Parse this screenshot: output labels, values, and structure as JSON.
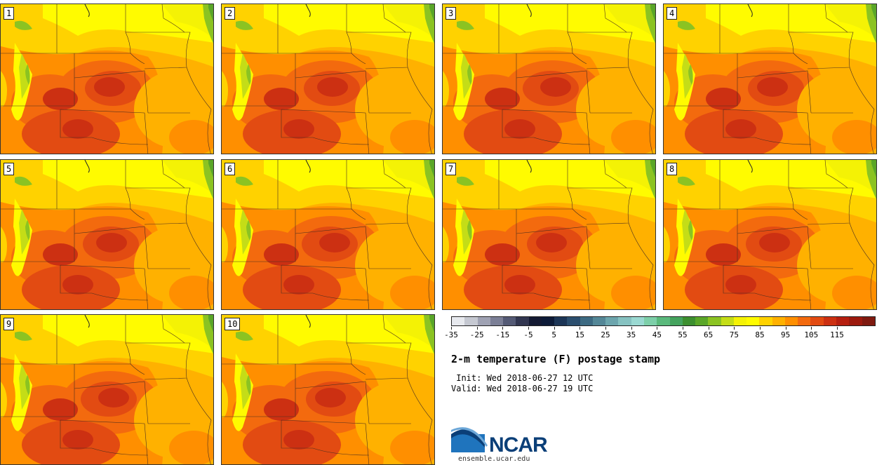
{
  "members": [
    "1",
    "2",
    "3",
    "4",
    "5",
    "6",
    "7",
    "8",
    "9",
    "10"
  ],
  "colorbar": {
    "colors": [
      "#e7e9ee",
      "#c5c8d1",
      "#9fa2b3",
      "#7b7f96",
      "#545a75",
      "#313650",
      "#141a33",
      "#0d1b38",
      "#1c3556",
      "#2b4e6e",
      "#3d6a82",
      "#548797",
      "#6ca5ad",
      "#86c2c1",
      "#9ad9d2",
      "#7dcfa9",
      "#5ab97c",
      "#44a35e",
      "#3c8f2f",
      "#5aa628",
      "#8bc322",
      "#c4dd17",
      "#f4f205",
      "#fffb00",
      "#ffd200",
      "#ffb100",
      "#ff8f00",
      "#f36a0e",
      "#e24b12",
      "#cc3012",
      "#b51f10",
      "#9c1a0e",
      "#7f1a10"
    ],
    "tick_labels": [
      "-35",
      "-25",
      "-15",
      "-5",
      "5",
      "15",
      "25",
      "35",
      "45",
      "55",
      "65",
      "75",
      "85",
      "95",
      "105",
      "115"
    ]
  },
  "title": "2-m temperature (F) postage stamp",
  "init_line": " Init: Wed 2018-06-27 12 UTC",
  "valid_line": "Valid: Wed 2018-06-27 19 UTC",
  "logo_name": "NCAR",
  "logo_url": "ensemble.ucar.edu"
}
